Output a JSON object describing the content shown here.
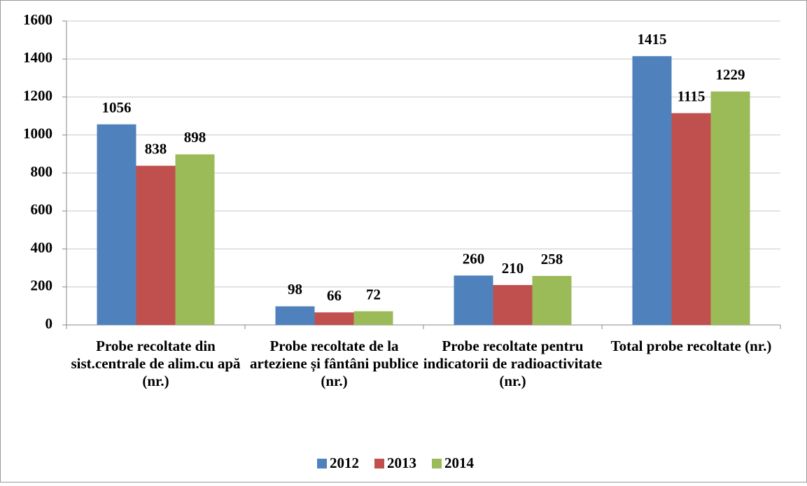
{
  "chart_data": {
    "type": "bar",
    "categories": [
      "Probe recoltate din sist.centrale de alim.cu apă (nr.)",
      "Probe recoltate de la arteziene și fântâni publice (nr.)",
      "Probe recoltate pentru indicatorii de radioactivitate (nr.)",
      "Total probe recoltate (nr.)"
    ],
    "series": [
      {
        "name": "2012",
        "color": "#4f81bd",
        "values": [
          1056,
          98,
          260,
          1415
        ]
      },
      {
        "name": "2013",
        "color": "#c0504d",
        "values": [
          838,
          66,
          210,
          1115
        ]
      },
      {
        "name": "2014",
        "color": "#9bbb59",
        "values": [
          898,
          72,
          258,
          1229
        ]
      }
    ],
    "ylim": [
      0,
      1600
    ],
    "yticks": [
      0,
      200,
      400,
      600,
      800,
      1000,
      1200,
      1400,
      1600
    ],
    "grid": true,
    "legend": "bottom"
  }
}
